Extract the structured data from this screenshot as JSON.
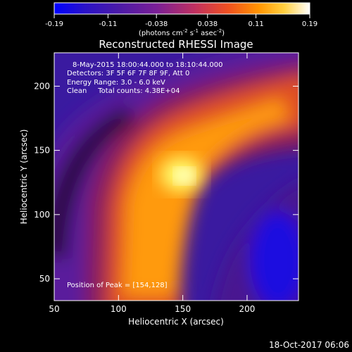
{
  "chart_data": {
    "type": "heatmap",
    "title": "Reconstructed RHESSI Image",
    "xlabel": "Heliocentric X (arcsec)",
    "ylabel": "Heliocentric Y (arcsec)",
    "xlim": [
      50,
      240
    ],
    "ylim": [
      33,
      226
    ],
    "xticks": [
      50,
      100,
      150,
      200
    ],
    "yticks": [
      50,
      100,
      150,
      200
    ],
    "colorbar": {
      "ticks": [
        "-0.19",
        "-0.11",
        "-0.038",
        "0.038",
        "0.11",
        "0.19"
      ],
      "tick_values": [
        -0.19,
        -0.11,
        -0.038,
        0.038,
        0.11,
        0.19
      ],
      "range": [
        -0.19,
        0.19
      ],
      "label_prefix": "(photons cm",
      "label_exp1": "-2",
      "label_mid": " s",
      "label_exp2": "-1",
      "label_mid2": " asec",
      "label_exp3": "-2",
      "label_suffix": ")"
    },
    "annotations": [
      "8-May-2015 18:00:44.000 to 18:10:44.000",
      "Detectors: 3F 5F 6F 7F 8F 9F, Att 0",
      "Energy Range: 3.0 - 6.0 keV",
      "Clean     Total counts: 4.38E+04"
    ],
    "peak_label": "Position of Peak = [154,128]",
    "peak": [
      154,
      128
    ],
    "timestamp": "18-Oct-2017 06:06"
  },
  "colors": {
    "background": "#000000",
    "colormap": [
      "#0000ff",
      "#2a10c0",
      "#5b1aa0",
      "#8a1f8f",
      "#c03060",
      "#f05020",
      "#ff9000",
      "#ffd030",
      "#ffff80",
      "#ffffff"
    ]
  }
}
